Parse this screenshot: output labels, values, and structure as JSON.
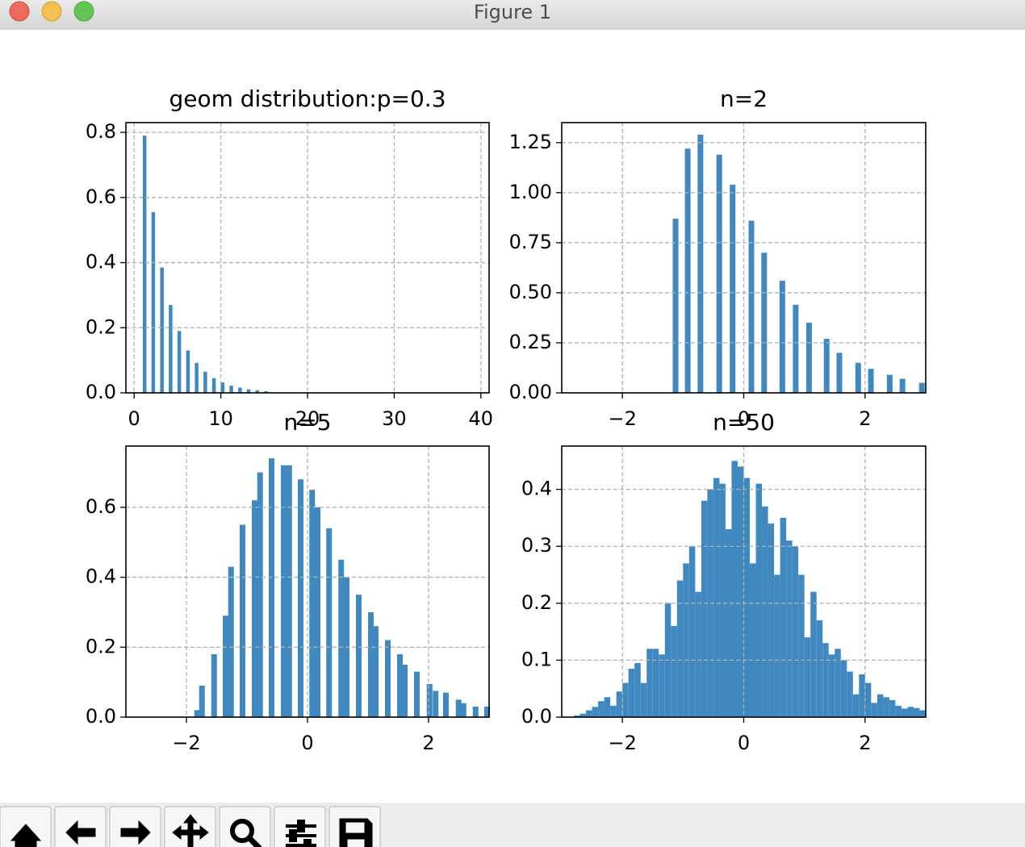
{
  "window": {
    "title": "Figure 1"
  },
  "chart_data": [
    {
      "type": "bar",
      "title": "geom distribution:p=0.3",
      "color": "#3f88c0",
      "grid": true,
      "x": [
        1,
        2,
        3,
        4,
        5,
        6,
        7,
        8,
        9,
        10,
        11,
        12,
        13,
        14,
        15
      ],
      "values": [
        0.79,
        0.555,
        0.385,
        0.27,
        0.19,
        0.13,
        0.092,
        0.065,
        0.045,
        0.032,
        0.022,
        0.016,
        0.011,
        0.008,
        0.005
      ],
      "xlim": [
        -0.95,
        40.95
      ],
      "xticks": [
        0,
        10,
        20,
        30,
        40
      ],
      "ylim": [
        0,
        0.83
      ],
      "yticks": [
        {
          "value": 0,
          "label": "0.0"
        },
        0.2,
        0.4,
        0.6,
        0.8
      ]
    },
    {
      "type": "bar",
      "title": "n=2",
      "color": "#3f88c0",
      "grid": true,
      "x": [
        -1.17,
        -0.97,
        -0.76,
        -0.45,
        -0.23,
        0.08,
        0.29,
        0.59,
        0.81,
        1.03,
        1.32,
        1.53,
        1.84,
        2.05,
        2.36,
        2.57,
        2.89
      ],
      "values": [
        0.87,
        1.22,
        1.29,
        1.19,
        1.04,
        0.86,
        0.7,
        0.56,
        0.44,
        0.35,
        0.27,
        0.2,
        0.15,
        0.12,
        0.09,
        0.07,
        0.05
      ],
      "xlim": [
        -3,
        3
      ],
      "xticks": [
        {
          "value": -2,
          "label": "−2"
        },
        0,
        2
      ],
      "ylim": [
        0,
        1.35
      ],
      "yticks": [
        {
          "value": 0,
          "label": "0.00"
        },
        0.25,
        {
          "value": 0.5,
          "label": "0.50"
        },
        0.75,
        {
          "value": 1,
          "label": "1.00"
        },
        1.25
      ]
    },
    {
      "type": "bar",
      "title": "n=5",
      "color": "#3f88c0",
      "grid": true,
      "x": [
        -1.87,
        -1.79,
        -1.59,
        -1.4,
        -1.31,
        -1.12,
        -0.92,
        -0.83,
        -0.64,
        -0.44,
        -0.35,
        -0.16,
        0.03,
        0.12,
        0.31,
        0.51,
        0.6,
        0.8,
        1.0,
        1.08,
        1.28,
        1.48,
        1.56,
        1.76,
        1.97,
        2.07,
        2.24,
        2.45,
        2.53,
        2.73,
        2.92
      ],
      "values": [
        0.02,
        0.09,
        0.18,
        0.29,
        0.43,
        0.55,
        0.62,
        0.7,
        0.74,
        0.72,
        0.72,
        0.68,
        0.65,
        0.6,
        0.54,
        0.45,
        0.4,
        0.35,
        0.3,
        0.26,
        0.22,
        0.18,
        0.15,
        0.13,
        0.095,
        0.075,
        0.07,
        0.05,
        0.04,
        0.03,
        0.03
      ],
      "xlim": [
        -3,
        3
      ],
      "xticks": [
        {
          "value": -2,
          "label": "−2"
        },
        0,
        2
      ],
      "ylim": [
        0,
        0.775
      ],
      "yticks": [
        {
          "value": 0,
          "label": "0.0"
        },
        0.2,
        0.4,
        0.6
      ]
    },
    {
      "type": "histogram",
      "title": "n=50",
      "color": "#3f88c0",
      "grid": true,
      "bins": [
        -2.8,
        -2.7,
        -2.6,
        -2.5,
        -2.4,
        -2.3,
        -2.2,
        -2.1,
        -2.0,
        -1.9,
        -1.8,
        -1.7,
        -1.6,
        -1.5,
        -1.4,
        -1.3,
        -1.2,
        -1.1,
        -1.0,
        -0.9,
        -0.8,
        -0.7,
        -0.6,
        -0.5,
        -0.4,
        -0.3,
        -0.2,
        -0.1,
        0.0,
        0.1,
        0.2,
        0.3,
        0.4,
        0.5,
        0.6,
        0.7,
        0.8,
        0.9,
        1.0,
        1.1,
        1.2,
        1.3,
        1.4,
        1.5,
        1.6,
        1.7,
        1.8,
        1.9,
        2.0,
        2.1,
        2.2,
        2.3,
        2.4,
        2.5,
        2.6,
        2.7,
        2.8,
        2.9,
        3.0
      ],
      "values": [
        0.003,
        0.006,
        0.012,
        0.018,
        0.028,
        0.035,
        0.02,
        0.045,
        0.06,
        0.085,
        0.095,
        0.06,
        0.12,
        0.12,
        0.11,
        0.2,
        0.16,
        0.24,
        0.27,
        0.3,
        0.22,
        0.38,
        0.4,
        0.42,
        0.41,
        0.33,
        0.45,
        0.44,
        0.42,
        0.27,
        0.41,
        0.37,
        0.34,
        0.25,
        0.35,
        0.31,
        0.3,
        0.25,
        0.14,
        0.22,
        0.17,
        0.13,
        0.11,
        0.12,
        0.1,
        0.08,
        0.04,
        0.075,
        0.06,
        0.025,
        0.04,
        0.035,
        0.03,
        0.02,
        0.015,
        0.018,
        0.016,
        0.012
      ],
      "xlim": [
        -3,
        3
      ],
      "xticks": [
        {
          "value": -2,
          "label": "−2"
        },
        0,
        2
      ],
      "ylim": [
        0,
        0.476
      ],
      "yticks": [
        {
          "value": 0,
          "label": "0.0"
        },
        0.1,
        0.2,
        0.3,
        0.4
      ]
    }
  ]
}
